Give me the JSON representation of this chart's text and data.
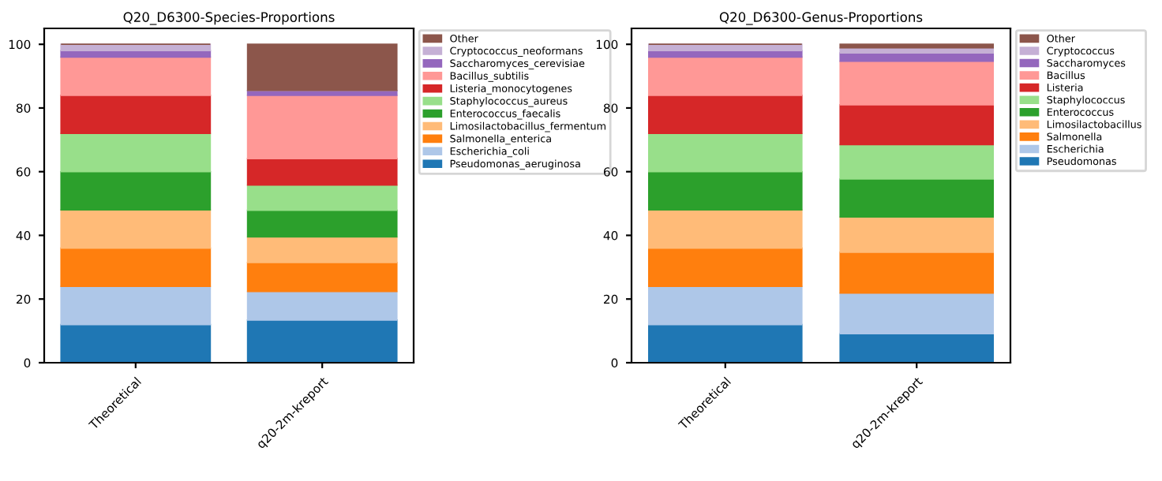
{
  "chart_data": [
    {
      "type": "bar",
      "stacked": true,
      "title": "Q20_D6300-Species-Proportions",
      "categories": [
        "Theoretical",
        "q20-2m-kreport"
      ],
      "ylim": [
        0,
        105
      ],
      "yticks": [
        0,
        20,
        40,
        60,
        80,
        100
      ],
      "grid": false,
      "legend": "right",
      "series": [
        {
          "name": "Pseudomonas_aeruginosa",
          "color": "#1f77b4",
          "values": [
            12,
            13.4
          ]
        },
        {
          "name": "Escherichia_coli",
          "color": "#aec7e8",
          "values": [
            12,
            9.0
          ]
        },
        {
          "name": "Salmonella_enterica",
          "color": "#ff7f0e",
          "values": [
            12,
            9.1
          ]
        },
        {
          "name": "Limosilactobacillus_fermentum",
          "color": "#ffbb78",
          "values": [
            12,
            8.0
          ]
        },
        {
          "name": "Enterococcus_faecalis",
          "color": "#2ca02c",
          "values": [
            12,
            8.4
          ]
        },
        {
          "name": "Staphylococcus_aureus",
          "color": "#98df8a",
          "values": [
            12,
            7.9
          ]
        },
        {
          "name": "Listeria_monocytogenes",
          "color": "#d62728",
          "values": [
            12,
            8.3
          ]
        },
        {
          "name": "Bacillus_subtilis",
          "color": "#ff9896",
          "values": [
            12,
            19.9
          ]
        },
        {
          "name": "Saccharomyces_cerevisiae",
          "color": "#9467bd",
          "values": [
            2,
            1.5
          ]
        },
        {
          "name": "Cryptococcus_neoformans",
          "color": "#c5b0d5",
          "values": [
            2,
            0
          ]
        },
        {
          "name": "Other",
          "color": "#8c564b",
          "values": [
            0,
            14.5
          ]
        }
      ]
    },
    {
      "type": "bar",
      "stacked": true,
      "title": "Q20_D6300-Genus-Proportions",
      "categories": [
        "Theoretical",
        "q20-2m-kreport"
      ],
      "ylim": [
        0,
        105
      ],
      "yticks": [
        0,
        20,
        40,
        60,
        80,
        100
      ],
      "grid": false,
      "legend": "right",
      "series": [
        {
          "name": "Pseudomonas",
          "color": "#1f77b4",
          "values": [
            12,
            9.1
          ]
        },
        {
          "name": "Escherichia",
          "color": "#aec7e8",
          "values": [
            12,
            12.8
          ]
        },
        {
          "name": "Salmonella",
          "color": "#ff7f0e",
          "values": [
            12,
            12.8
          ]
        },
        {
          "name": "Limosilactobacillus",
          "color": "#ffbb78",
          "values": [
            12,
            11.1
          ]
        },
        {
          "name": "Enterococcus",
          "color": "#2ca02c",
          "values": [
            12,
            11.9
          ]
        },
        {
          "name": "Staphylococcus",
          "color": "#98df8a",
          "values": [
            12,
            10.8
          ]
        },
        {
          "name": "Listeria",
          "color": "#d62728",
          "values": [
            12,
            12.5
          ]
        },
        {
          "name": "Bacillus",
          "color": "#ff9896",
          "values": [
            12,
            13.7
          ]
        },
        {
          "name": "Saccharomyces",
          "color": "#9467bd",
          "values": [
            2,
            2.6
          ]
        },
        {
          "name": "Cryptococcus",
          "color": "#c5b0d5",
          "values": [
            2,
            1.6
          ]
        },
        {
          "name": "Other",
          "color": "#8c564b",
          "values": [
            0,
            1.1
          ]
        }
      ]
    }
  ]
}
